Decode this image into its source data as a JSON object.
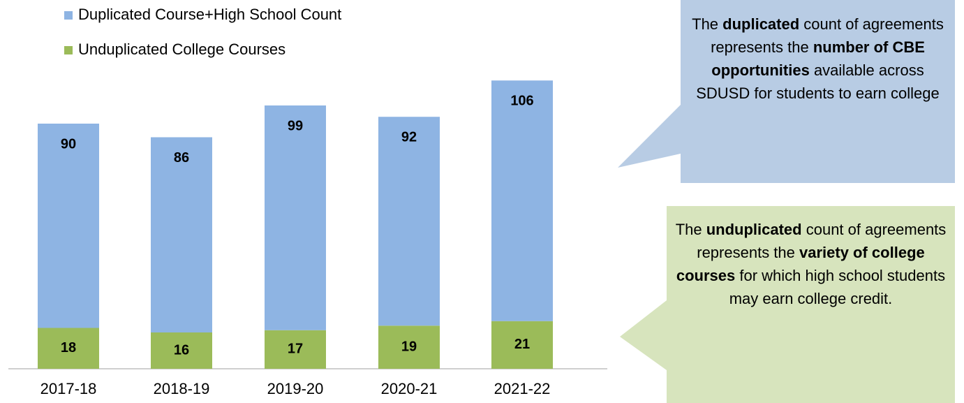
{
  "chart_data": {
    "type": "stacked_bar",
    "categories": [
      "2017-18",
      "2018-19",
      "2019-20",
      "2020-21",
      "2021-22"
    ],
    "series": [
      {
        "name": "Unduplicated College Courses",
        "color": "#9bbb59",
        "values": [
          18,
          16,
          17,
          19,
          21
        ]
      },
      {
        "name": "Duplicated Course+High School Count",
        "color": "#8eb4e3",
        "values": [
          90,
          86,
          99,
          92,
          106
        ]
      }
    ],
    "ylim": [
      0,
      140
    ],
    "annotations": [
      {
        "color": "#b8cce4",
        "parts": [
          {
            "text": "The ",
            "bold": false
          },
          {
            "text": "duplicated",
            "bold": true
          },
          {
            "text": " count of agreements represents the ",
            "bold": false
          },
          {
            "text": "number of CBE opportunities",
            "bold": true
          },
          {
            "text": " available across SDUSD for students to earn college",
            "bold": false
          }
        ]
      },
      {
        "color": "#d7e4bd",
        "parts": [
          {
            "text": "The ",
            "bold": false
          },
          {
            "text": "unduplicated",
            "bold": true
          },
          {
            "text": " count of agreements represents the ",
            "bold": false
          },
          {
            "text": "variety of college courses",
            "bold": true
          },
          {
            "text": " for which high school students may earn college credit.",
            "bold": false
          }
        ]
      }
    ]
  }
}
